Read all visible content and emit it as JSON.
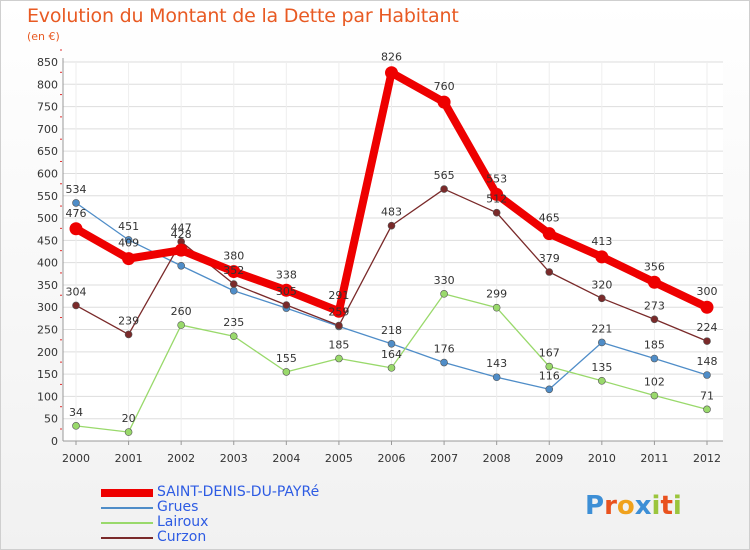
{
  "title": "Evolution du Montant de la Dette par Habitant",
  "subtitle": "(en €)",
  "logo_text": "Proxiti",
  "chart_data": {
    "type": "line",
    "title": "Evolution du Montant de la Dette par Habitant",
    "ylabel": "(en €)",
    "x": [
      "2000",
      "2001",
      "2002",
      "2003",
      "2004",
      "2005",
      "2006",
      "2007",
      "2008",
      "2009",
      "2010",
      "2011",
      "2012"
    ],
    "ylim": [
      0,
      850
    ],
    "yticks": [
      0,
      50,
      100,
      150,
      200,
      250,
      300,
      350,
      400,
      450,
      500,
      550,
      600,
      650,
      700,
      750,
      800,
      850
    ],
    "grid": true,
    "legend_position": "bottom-left",
    "series": [
      {
        "name": "SAINT-DENIS-DU-PAYRé",
        "color": "#ee0000",
        "values": [
          476,
          409,
          428,
          380,
          338,
          291,
          826,
          760,
          553,
          465,
          413,
          356,
          300
        ],
        "labels": [
          "476",
          "409",
          "428",
          "380",
          "338",
          "291",
          "826",
          "760",
          "553",
          "465",
          "413",
          "356",
          "300"
        ]
      },
      {
        "name": "Grues",
        "color": "#4f8dc8",
        "values": [
          534,
          451,
          393,
          337,
          298,
          257,
          218,
          176,
          143,
          116,
          221,
          185,
          148
        ],
        "labels": [
          "534",
          "451",
          "",
          "",
          "",
          "",
          "218",
          "176",
          "143",
          "116",
          "221",
          "185",
          "148"
        ]
      },
      {
        "name": "Lairoux",
        "color": "#99d96b",
        "values": [
          34,
          20,
          260,
          235,
          155,
          185,
          164,
          330,
          299,
          167,
          135,
          102,
          71
        ],
        "labels": [
          "34",
          "20",
          "260",
          "235",
          "155",
          "185",
          "164",
          "330",
          "299",
          "167",
          "135",
          "102",
          "71"
        ]
      },
      {
        "name": "Curzon",
        "color": "#7a2a2a",
        "values": [
          304,
          239,
          447,
          352,
          305,
          259,
          483,
          565,
          512,
          379,
          320,
          273,
          224
        ],
        "labels": [
          "304",
          "239",
          "447",
          "352",
          "305",
          "259",
          "483",
          "565",
          "512",
          "379",
          "320",
          "273",
          "224"
        ]
      }
    ]
  }
}
